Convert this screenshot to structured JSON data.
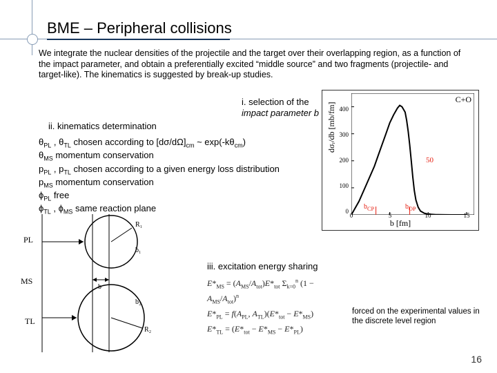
{
  "title": "BME – Peripheral collisions",
  "intro": "We integrate the nuclear densities of the projectile and the target over their overlapping region, as a function of the impact parameter, and obtain a preferentially excited “middle source” and two fragments (projectile- and target-like). The kinematics is suggested by break-up studies.",
  "step_i": "i. selection of the impact parameter b",
  "step_ii": "ii. kinematics determination",
  "step_iii": "iii. excitation energy sharing",
  "kinematics": {
    "line1_a": "θ",
    "line1_b": " , θ",
    "line1_c": " chosen according to [dσ/dΩ]",
    "line1_d": " ~ exp(-kθ",
    "line1_e": ")",
    "line2_a": "θ",
    "line2_b": " momentum conservation",
    "line3_a": "p",
    "line3_b": " , p",
    "line3_c": " chosen according to a given energy loss distribution",
    "line4_a": "p",
    "line4_b": " momentum conservation",
    "line5_a": "ϕ",
    "line5_b": " free",
    "line6_a": "ϕ",
    "line6_b": " , ϕ",
    "line6_c": " same reaction plane",
    "sub_PL": "PL",
    "sub_TL": "TL",
    "sub_MS": "MS",
    "sub_cm": "cm"
  },
  "footnote": "forced on the experimental values in the discrete level region",
  "page_number": "16",
  "diagram": {
    "R1": "R₁",
    "R2": "R₂",
    "b1": "b₁",
    "b2": "b₂",
    "b": "b",
    "PL": "PL",
    "MS": "MS",
    "TL": "TL",
    "circle_stroke": "#000000",
    "line_stroke": "#000000"
  },
  "chart": {
    "type": "line",
    "title": "C+O",
    "ylabel": "dσᵣ/db  [mb/fm]",
    "xlabel": "b  [fm]",
    "xlim": [
      0,
      16
    ],
    "ylim": [
      0,
      450
    ],
    "xticks": [
      0,
      5,
      10,
      15
    ],
    "yticks": [
      0,
      100,
      200,
      300,
      400
    ],
    "annotation_50": "50",
    "b_cp_label": "bꞲᴘ",
    "b_op_label": "bᵒᴘ",
    "b_cp_x": 3.2,
    "b_op_x": 7.6,
    "background_color": "#ffffff",
    "axis_color": "#000000",
    "curve_color": "#000000",
    "annotation_color": "#e51e10",
    "line_width": 2,
    "curve": [
      [
        0,
        0
      ],
      [
        1,
        50
      ],
      [
        2,
        115
      ],
      [
        3,
        180
      ],
      [
        3.5,
        220
      ],
      [
        4,
        260
      ],
      [
        4.5,
        300
      ],
      [
        5,
        340
      ],
      [
        5.5,
        370
      ],
      [
        6,
        395
      ],
      [
        6.3,
        405
      ],
      [
        6.6,
        400
      ],
      [
        7,
        380
      ],
      [
        7.2,
        350
      ],
      [
        7.4,
        310
      ],
      [
        7.6,
        260
      ],
      [
        7.8,
        200
      ],
      [
        8,
        140
      ],
      [
        8.2,
        90
      ],
      [
        8.4,
        55
      ],
      [
        8.7,
        28
      ],
      [
        9,
        14
      ],
      [
        9.5,
        6
      ],
      [
        10,
        2.5
      ],
      [
        11,
        0.8
      ],
      [
        12,
        0.25
      ],
      [
        13,
        0.08
      ],
      [
        14,
        0.03
      ],
      [
        15,
        0.01
      ]
    ]
  },
  "equations": {
    "eq1": "E*ₘₛ = (Aₘₛ / Aₜₒₜ) E*ₜₒₜ Σ αₖ (1 − Aₘₛ / Aₜₒₜ)ⁿ",
    "eq2": "E*ₚₗ = f(Aₚₗ, Aₜₗ)(E*ₜₒₜ − E*ₘₛ)",
    "eq3": "E*ₜₗ = (E*ₜₒₜ − E*ₘₛ − E*ₚₗ)"
  }
}
